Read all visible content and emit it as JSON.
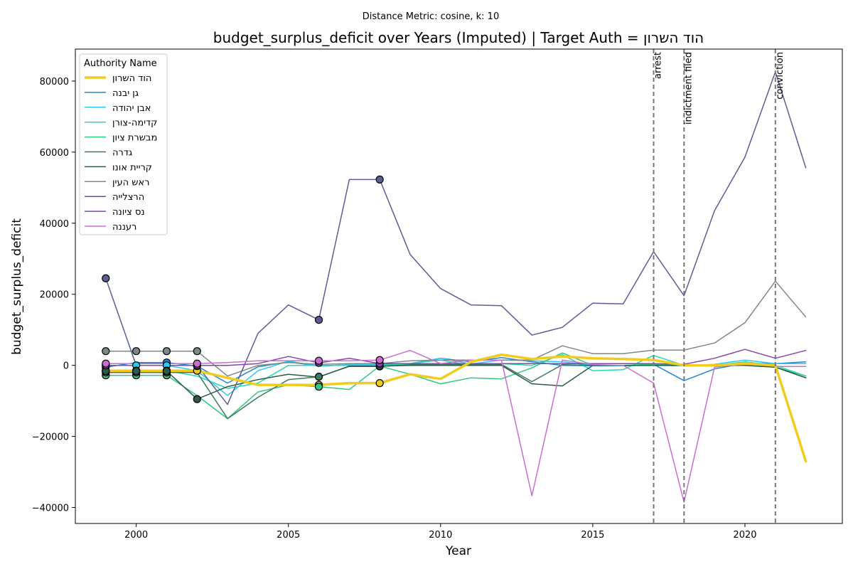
{
  "supertitle": "Distance Metric: cosine, k: 10",
  "chart_data": {
    "type": "line",
    "title": "budget_surplus_deficit over Years (Imputed) | Target Auth = הוד השרון",
    "xlabel": "Year",
    "ylabel": "budget_surplus_deficit",
    "xlim": [
      1998,
      2023.2
    ],
    "ylim": [
      -44500,
      89000
    ],
    "x_ticks": [
      2000,
      2005,
      2010,
      2015,
      2020
    ],
    "y_ticks": [
      -40000,
      -20000,
      0,
      20000,
      40000,
      60000,
      80000
    ],
    "y_tick_labels": [
      "−40000",
      "−20000",
      "0",
      "20000",
      "40000",
      "60000",
      "80000"
    ],
    "grid": false,
    "legend": {
      "title": "Authority Name",
      "placement": "top-left"
    },
    "x": [
      1999,
      2000,
      2001,
      2002,
      2003,
      2004,
      2005,
      2006,
      2007,
      2008,
      2009,
      2010,
      2011,
      2012,
      2013,
      2014,
      2015,
      2016,
      2017,
      2018,
      2019,
      2020,
      2021,
      2022
    ],
    "series": [
      {
        "name": "הוד השרון",
        "color": "#f2cc1c",
        "width": 3.5,
        "target": true,
        "values": [
          -1500,
          -1500,
          -1500,
          -1500,
          -3500,
          -5500,
          -5500,
          -5500,
          -5000,
          -5000,
          -2500,
          -3800,
          1000,
          3000,
          1800,
          2500,
          2000,
          1800,
          1500,
          0,
          0,
          500,
          0,
          -27000
        ],
        "imputed_years": [
          1999,
          2000,
          2001,
          2002,
          2006,
          2008
        ]
      },
      {
        "name": "גן יבנה",
        "color": "#1f88d6",
        "width": 1.5,
        "values": [
          -500,
          800,
          800,
          -200,
          -5000,
          -400,
          1000,
          -200,
          200,
          200,
          500,
          2000,
          1000,
          2200,
          1000,
          0,
          -100,
          -100,
          300,
          -4300,
          -1000,
          600,
          500,
          1000
        ],
        "imputed_years": [
          1999,
          2001,
          2002
        ]
      },
      {
        "name": "אבן יהודה",
        "color": "#2bc8ef",
        "width": 1.5,
        "values": [
          0,
          0,
          0,
          -1500,
          -8500,
          -1500,
          1200,
          -200,
          200,
          200,
          500,
          2000,
          400,
          1500,
          1300,
          1000,
          0,
          -100,
          0,
          -100,
          300,
          1500,
          500,
          500
        ],
        "imputed_years": [
          1999,
          2000,
          2001
        ]
      },
      {
        "name": "קדימה-צורן",
        "color": "#29d8b0",
        "width": 1.5,
        "values": [
          -1500,
          -1500,
          -1500,
          -3000,
          -6500,
          -5000,
          0,
          0,
          0,
          0,
          500,
          1500,
          0,
          500,
          0,
          3000,
          -1500,
          -1200,
          2800,
          0,
          0,
          1000,
          0,
          -3000
        ],
        "imputed_years": [
          1999,
          2000,
          2001
        ]
      },
      {
        "name": "מבשרת ציון",
        "color": "#2fcb7c",
        "width": 1.5,
        "values": [
          -2800,
          -2800,
          -2800,
          -8500,
          -15000,
          -7500,
          -5500,
          -6000,
          -6800,
          -200,
          -2500,
          -5200,
          -3500,
          -3800,
          -700,
          3500,
          0,
          0,
          300,
          0,
          0,
          500,
          -500,
          -3000
        ],
        "imputed_years": [
          1999,
          2000,
          2001,
          2006
        ]
      },
      {
        "name": "גדרה",
        "color": "#3d7a63",
        "width": 1.5,
        "values": [
          -2000,
          -2000,
          -2000,
          -2000,
          -15000,
          -9000,
          -4000,
          -3200,
          -300,
          -300,
          200,
          300,
          300,
          300,
          -4600,
          200,
          0,
          0,
          0,
          0,
          0,
          0,
          -500,
          -3500
        ],
        "imputed_years": [
          1999,
          2000,
          2001,
          2006,
          2008
        ]
      },
      {
        "name": "קריית אונו",
        "color": "#2e5a4a",
        "width": 1.5,
        "values": [
          -1600,
          -1600,
          -1600,
          -9500,
          -6000,
          -4000,
          -2500,
          -3300,
          -200,
          -200,
          0,
          0,
          0,
          0,
          -5200,
          -5800,
          0,
          0,
          0,
          0,
          0,
          0,
          -500,
          -3500
        ],
        "imputed_years": [
          1999,
          2000,
          2001,
          2002,
          2008
        ]
      },
      {
        "name": "ראש העין",
        "color": "#7b8a86",
        "width": 1.5,
        "values": [
          4000,
          4000,
          4000,
          4000,
          -3000,
          0,
          800,
          300,
          500,
          500,
          1300,
          1500,
          1500,
          1500,
          1500,
          5500,
          3300,
          3300,
          4300,
          4300,
          6300,
          12000,
          23700,
          13600
        ],
        "imputed_years": [
          1999,
          2000,
          2001,
          2002
        ]
      },
      {
        "name": "הרצלייה",
        "color": "#5d5d96",
        "width": 1.5,
        "values": [
          24500,
          0,
          0,
          0,
          -11000,
          9000,
          17000,
          12800,
          52300,
          52300,
          31200,
          21600,
          17000,
          16800,
          8500,
          10700,
          17500,
          17300,
          32000,
          19600,
          43500,
          58600,
          82600,
          55600
        ],
        "imputed_years": [
          1999,
          2006,
          2008
        ]
      },
      {
        "name": "נס ציונה",
        "color": "#8445b0",
        "width": 1.5,
        "values": [
          0,
          0,
          0,
          0,
          0,
          500,
          2500,
          700,
          2000,
          500,
          500,
          500,
          500,
          500,
          500,
          500,
          500,
          500,
          500,
          300,
          2000,
          4500,
          2000,
          4200
        ],
        "imputed_years": [
          1999,
          2002,
          2006,
          2008
        ]
      },
      {
        "name": "רעננה",
        "color": "#c96ed0",
        "width": 1.5,
        "values": [
          500,
          500,
          500,
          500,
          800,
          1300,
          1300,
          1300,
          1300,
          1500,
          4200,
          500,
          1500,
          1500,
          -36700,
          1500,
          200,
          0,
          -5000,
          -38500,
          -500,
          500,
          -300,
          -300
        ],
        "imputed_years": [
          1999,
          2002,
          2006,
          2008
        ]
      }
    ],
    "events": [
      {
        "year": 2017,
        "label": "arrest"
      },
      {
        "year": 2018,
        "label": "indictment filed"
      },
      {
        "year": 2021,
        "label": "conviction"
      }
    ]
  }
}
